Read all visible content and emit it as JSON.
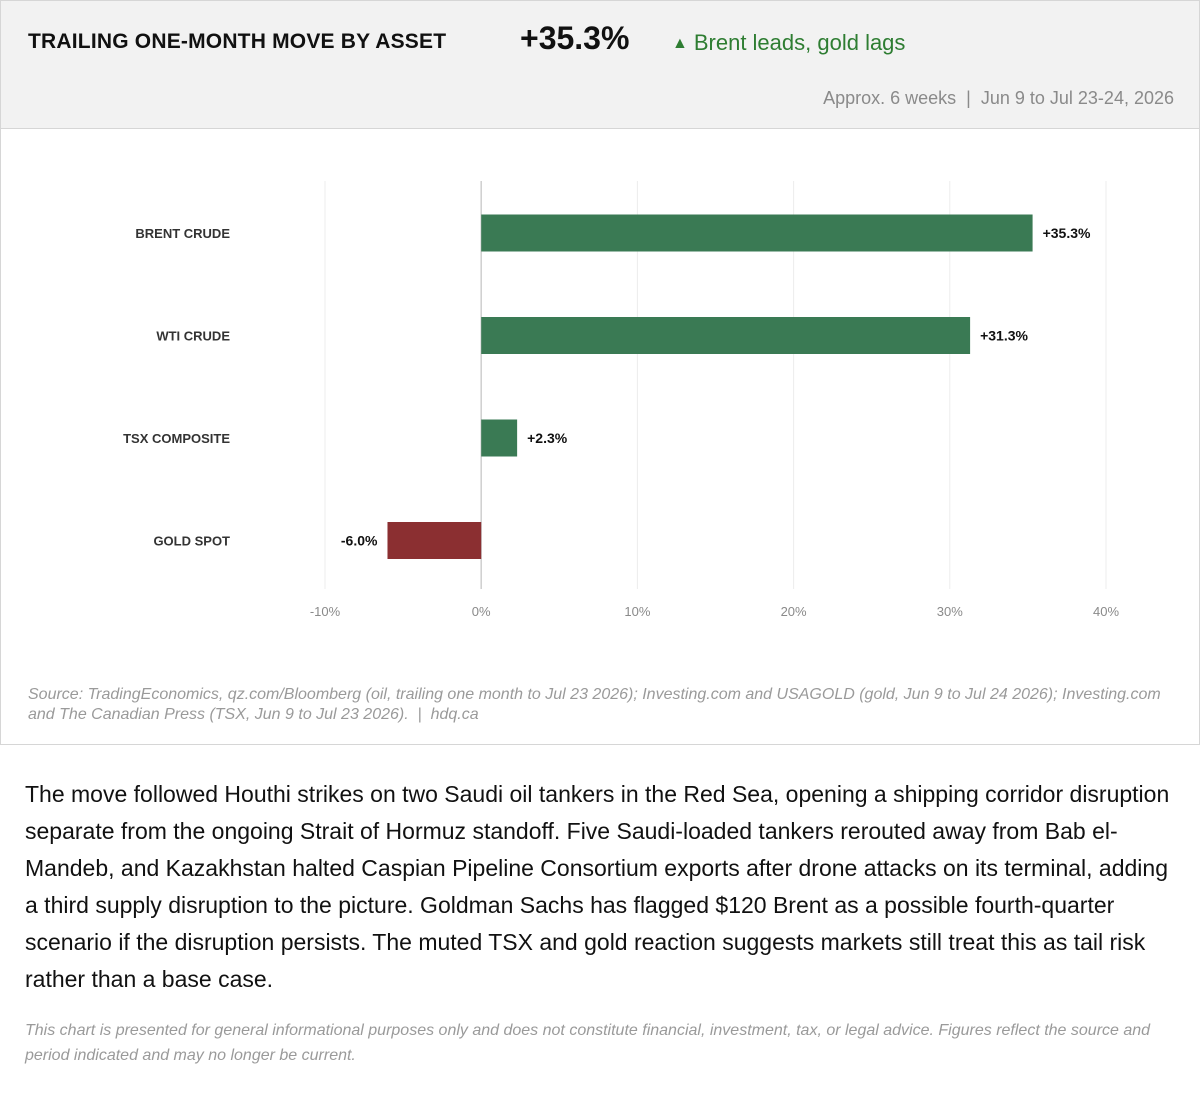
{
  "header": {
    "title": "TRAILING ONE-MONTH MOVE BY ASSET",
    "headline_value": "+35.3%",
    "trend_icon": "triangle-up",
    "trend_text": "Brent leads, gold lags",
    "period": "Approx. 6 weeks  |  Jun 9 to Jul 23-24, 2026"
  },
  "colors": {
    "positive": "#3a7a54",
    "negative": "#8b2f31",
    "accent_text": "#2e7d32"
  },
  "chart_data": {
    "type": "bar",
    "orientation": "horizontal",
    "categories": [
      "BRENT CRUDE",
      "WTI CRUDE",
      "TSX COMPOSITE",
      "GOLD SPOT"
    ],
    "values": [
      35.3,
      31.3,
      2.3,
      -6.0
    ],
    "value_labels": [
      "+35.3%",
      "+31.3%",
      "+2.3%",
      "-6.0%"
    ],
    "xlim": [
      -10,
      40
    ],
    "xticks": [
      -10,
      0,
      10,
      20,
      30,
      40
    ],
    "xtick_labels": [
      "-10%",
      "0%",
      "10%",
      "20%",
      "30%",
      "40%"
    ],
    "grid": true,
    "legend": "none"
  },
  "source": "Source: TradingEconomics, qz.com/Bloomberg (oil, trailing one month to Jul 23 2026); Investing.com and USAGOLD (gold, Jun 9 to Jul 24 2026); Investing.com and The Canadian Press (TSX, Jun 9 to Jul 23 2026).  |  hdq.ca",
  "body_text": "The move followed Houthi strikes on two Saudi oil tankers in the Red Sea, opening a shipping corridor disruption separate from the ongoing Strait of Hormuz standoff. Five Saudi-loaded tankers rerouted away from Bab el-Mandeb, and Kazakhstan halted Caspian Pipeline Consortium exports after drone attacks on its terminal, adding a third supply disruption to the picture. Goldman Sachs has flagged $120 Brent as a possible fourth-quarter scenario if the disruption persists. The muted TSX and gold reaction suggests markets still treat this as tail risk rather than a base case.",
  "disclaimer": "This chart is presented for general informational purposes only and does not constitute financial, investment, tax, or legal advice. Figures reflect the source and period indicated and may no longer be current."
}
